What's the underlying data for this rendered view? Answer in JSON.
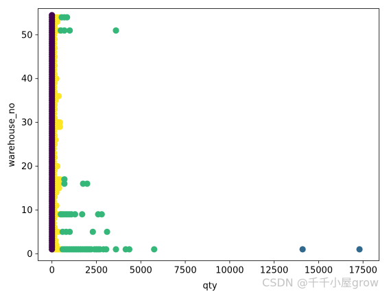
{
  "chart_data": {
    "type": "scatter",
    "title": "",
    "xlabel": "qty",
    "ylabel": "warehouse_no",
    "xlim": [
      -780,
      18400
    ],
    "ylim": [
      -1.6,
      56.0
    ],
    "xticks": [
      0,
      2500,
      5000,
      7500,
      10000,
      12500,
      15000,
      17500
    ],
    "xtick_labels": [
      "0",
      "2500",
      "5000",
      "7500",
      "10000",
      "12500",
      "15000",
      "17500"
    ],
    "yticks": [
      0,
      10,
      20,
      30,
      40,
      50
    ],
    "ytick_labels": [
      "0",
      "10",
      "20",
      "30",
      "40",
      "50"
    ],
    "grid": false,
    "legend": "none",
    "series": [
      {
        "color": "#fde725",
        "points": [
          [
            0,
            1
          ],
          [
            80,
            1
          ],
          [
            160,
            1
          ],
          [
            250,
            1
          ],
          [
            330,
            1
          ],
          [
            420,
            1
          ],
          [
            500,
            1
          ],
          [
            0,
            2
          ],
          [
            150,
            2
          ],
          [
            250,
            2
          ],
          [
            0,
            3
          ],
          [
            100,
            3
          ],
          [
            200,
            3
          ],
          [
            0,
            4
          ],
          [
            120,
            4
          ],
          [
            0,
            5
          ],
          [
            150,
            5
          ],
          [
            250,
            5
          ],
          [
            350,
            5
          ],
          [
            0,
            6
          ],
          [
            150,
            6
          ],
          [
            0,
            7
          ],
          [
            100,
            7
          ],
          [
            0,
            8
          ],
          [
            120,
            8
          ],
          [
            0,
            9
          ],
          [
            150,
            9
          ],
          [
            300,
            9
          ],
          [
            450,
            9
          ],
          [
            550,
            9
          ],
          [
            0,
            10
          ],
          [
            120,
            10
          ],
          [
            0,
            11
          ],
          [
            150,
            11
          ],
          [
            250,
            11
          ],
          [
            0,
            12
          ],
          [
            100,
            12
          ],
          [
            0,
            13
          ],
          [
            150,
            13
          ],
          [
            0,
            14
          ],
          [
            120,
            14
          ],
          [
            250,
            14
          ],
          [
            0,
            15
          ],
          [
            150,
            15
          ],
          [
            300,
            15
          ],
          [
            400,
            15
          ],
          [
            0,
            16
          ],
          [
            250,
            16
          ],
          [
            400,
            16
          ],
          [
            0,
            17
          ],
          [
            300,
            17
          ],
          [
            450,
            17
          ],
          [
            0,
            18
          ],
          [
            120,
            18
          ],
          [
            0,
            19
          ],
          [
            150,
            19
          ],
          [
            0,
            20
          ],
          [
            200,
            20
          ],
          [
            300,
            20
          ],
          [
            0,
            21
          ],
          [
            100,
            21
          ],
          [
            0,
            22
          ],
          [
            150,
            22
          ],
          [
            0,
            23
          ],
          [
            120,
            23
          ],
          [
            0,
            24
          ],
          [
            100,
            24
          ],
          [
            0,
            25
          ],
          [
            150,
            25
          ],
          [
            0,
            26
          ],
          [
            200,
            26
          ],
          [
            0,
            27
          ],
          [
            150,
            27
          ],
          [
            0,
            28
          ],
          [
            120,
            28
          ],
          [
            0,
            29
          ],
          [
            250,
            29
          ],
          [
            350,
            29
          ],
          [
            450,
            29
          ],
          [
            0,
            30
          ],
          [
            200,
            30
          ],
          [
            350,
            30
          ],
          [
            450,
            30
          ],
          [
            0,
            31
          ],
          [
            150,
            31
          ],
          [
            0,
            32
          ],
          [
            120,
            32
          ],
          [
            0,
            33
          ],
          [
            150,
            33
          ],
          [
            0,
            34
          ],
          [
            150,
            34
          ],
          [
            0,
            35
          ],
          [
            200,
            35
          ],
          [
            0,
            36
          ],
          [
            250,
            36
          ],
          [
            380,
            36
          ],
          [
            0,
            37
          ],
          [
            150,
            37
          ],
          [
            0,
            38
          ],
          [
            120,
            38
          ],
          [
            0,
            39
          ],
          [
            150,
            39
          ],
          [
            0,
            40
          ],
          [
            150,
            40
          ],
          [
            250,
            40
          ],
          [
            0,
            41
          ],
          [
            150,
            41
          ],
          [
            0,
            42
          ],
          [
            120,
            42
          ],
          [
            0,
            43
          ],
          [
            150,
            43
          ],
          [
            0,
            44
          ],
          [
            120,
            44
          ],
          [
            0,
            45
          ],
          [
            150,
            45
          ],
          [
            0,
            46
          ],
          [
            120,
            46
          ],
          [
            0,
            47
          ],
          [
            150,
            47
          ],
          [
            0,
            48
          ],
          [
            120,
            48
          ],
          [
            0,
            49
          ],
          [
            150,
            49
          ],
          [
            0,
            50
          ],
          [
            120,
            50
          ],
          [
            0,
            51
          ],
          [
            150,
            51
          ],
          [
            300,
            51
          ],
          [
            450,
            51
          ],
          [
            0,
            52
          ],
          [
            150,
            52
          ],
          [
            0,
            53
          ],
          [
            150,
            53
          ],
          [
            300,
            53
          ],
          [
            0,
            54
          ],
          [
            150,
            54
          ],
          [
            300,
            54
          ],
          [
            450,
            54
          ]
        ]
      },
      {
        "color": "#35b779",
        "points": [
          [
            600,
            1
          ],
          [
            700,
            1
          ],
          [
            800,
            1
          ],
          [
            900,
            1
          ],
          [
            1000,
            1
          ],
          [
            1100,
            1
          ],
          [
            1200,
            1
          ],
          [
            1300,
            1
          ],
          [
            1400,
            1
          ],
          [
            1500,
            1
          ],
          [
            1600,
            1
          ],
          [
            1700,
            1
          ],
          [
            1800,
            1
          ],
          [
            1900,
            1
          ],
          [
            2000,
            1
          ],
          [
            2100,
            1
          ],
          [
            2200,
            1
          ],
          [
            2400,
            1
          ],
          [
            2500,
            1
          ],
          [
            2600,
            1
          ],
          [
            2700,
            1
          ],
          [
            2900,
            1
          ],
          [
            3050,
            1
          ],
          [
            3600,
            1
          ],
          [
            4150,
            1
          ],
          [
            4350,
            1
          ],
          [
            5750,
            1
          ],
          [
            2300,
            5
          ],
          [
            3100,
            5
          ],
          [
            600,
            5
          ],
          [
            800,
            5
          ],
          [
            1000,
            5
          ],
          [
            500,
            9
          ],
          [
            600,
            9
          ],
          [
            700,
            9
          ],
          [
            800,
            9
          ],
          [
            900,
            9
          ],
          [
            1000,
            9
          ],
          [
            1100,
            9
          ],
          [
            1300,
            9
          ],
          [
            1700,
            9
          ],
          [
            2600,
            9
          ],
          [
            2800,
            9
          ],
          [
            700,
            16
          ],
          [
            1750,
            16
          ],
          [
            1980,
            16
          ],
          [
            700,
            17
          ],
          [
            500,
            51
          ],
          [
            700,
            51
          ],
          [
            1000,
            51
          ],
          [
            3600,
            51
          ],
          [
            550,
            54
          ],
          [
            700,
            54
          ],
          [
            850,
            54
          ]
        ]
      },
      {
        "color": "#31688e",
        "points": [
          [
            14100,
            1
          ],
          [
            17300,
            1
          ]
        ]
      },
      {
        "color": "#440154",
        "points": "column-x0-y1-54"
      }
    ]
  },
  "watermark": "CSDN @千千小屋grow"
}
